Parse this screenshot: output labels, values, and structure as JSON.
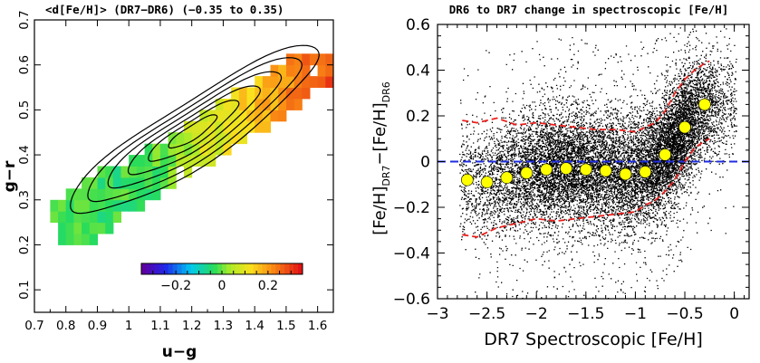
{
  "figure": {
    "left_panel": {
      "title": "<d[Fe/H]> (DR7−DR6) (−0.35 to 0.35)",
      "xlabel": "u−g",
      "ylabel": "g−r",
      "colorbar": {
        "ticks": [
          -0.2,
          0.0,
          0.2
        ],
        "tick_labels": [
          "−0.2",
          "0",
          "0.2"
        ],
        "range": [
          -0.35,
          0.35
        ]
      }
    },
    "right_panel": {
      "title": "DR6 to DR7 change in spectroscopic [Fe/H]",
      "xlabel": "DR7 Spectroscopic [Fe/H]",
      "ylabel_main": "[Fe/H]",
      "ylabel_sub1": "DR7",
      "ylabel_minus": "−[Fe/H]",
      "ylabel_sub2": "DR6"
    }
  },
  "colors": {
    "scatter_points": "#000000",
    "median_markers": "#ffff00",
    "envelope_lines": "#e8201c",
    "zero_line": "#1f2ee0",
    "contours": "#000000"
  },
  "chart_data": [
    {
      "type": "heatmap",
      "title": "<d[Fe/H]> (DR7−DR6) (−0.35 to 0.35)",
      "xlabel": "u−g",
      "ylabel": "g−r",
      "xlim": [
        0.7,
        1.65
      ],
      "ylim": [
        0.05,
        0.7
      ],
      "x_ticks": [
        0.7,
        0.8,
        0.9,
        1.0,
        1.1,
        1.2,
        1.3,
        1.4,
        1.5,
        1.6
      ],
      "x_tick_labels": [
        "0.7",
        "0.8",
        "0.9",
        "1",
        "1.1",
        "1.2",
        "1.3",
        "1.4",
        "1.5",
        "1.6"
      ],
      "y_ticks": [
        0.1,
        0.2,
        0.3,
        0.4,
        0.5,
        0.6,
        0.7
      ],
      "y_tick_labels": [
        "0.1",
        "0.2",
        "0.3",
        "0.4",
        "0.5",
        "0.6",
        "0.7"
      ],
      "color_range": [
        -0.35,
        0.35
      ],
      "cells": "median Δ[Fe/H] on a 0.025 × 0.025 color grid, ~ -0.03 at u−g 0.8 rising to ~ +0.3 at u−g 1.6; covered region spans u−g 0.75–1.62, g−r 0.2–0.62",
      "contours": "6 nested density contours centred near u−g 1.2, g−r 0.45"
    },
    {
      "type": "scatter",
      "title": "DR6 to DR7 change in spectroscopic [Fe/H]",
      "xlabel": "DR7 Spectroscopic [Fe/H]",
      "ylabel": "[Fe/H]DR7−[Fe/H]DR6",
      "xlim": [
        -3.0,
        0.15
      ],
      "ylim": [
        -0.6,
        0.6
      ],
      "x_ticks": [
        -3,
        -2.5,
        -2,
        -1.5,
        -1,
        -0.5,
        0
      ],
      "x_tick_labels": [
        "−3",
        "−2.5",
        "−2",
        "−1.5",
        "−1",
        "−0.5",
        "0"
      ],
      "y_ticks": [
        -0.6,
        -0.4,
        -0.2,
        0,
        0.2,
        0.4,
        0.6
      ],
      "y_tick_labels": [
        "−0.6",
        "−0.4",
        "−0.2",
        "0",
        "0.2",
        "0.4",
        "0.6"
      ],
      "medians": {
        "x": [
          -2.7,
          -2.5,
          -2.3,
          -2.1,
          -1.9,
          -1.7,
          -1.5,
          -1.3,
          -1.1,
          -0.9,
          -0.7,
          -0.5,
          -0.3
        ],
        "y": [
          -0.08,
          -0.09,
          -0.07,
          -0.05,
          -0.035,
          -0.03,
          -0.035,
          -0.04,
          -0.055,
          -0.045,
          0.03,
          0.15,
          0.25
        ]
      },
      "envelope_upper": {
        "x": [
          -2.75,
          -2.6,
          -2.4,
          -2.2,
          -2.0,
          -1.8,
          -1.6,
          -1.4,
          -1.2,
          -1.0,
          -0.9,
          -0.8,
          -0.7,
          -0.6,
          -0.5,
          -0.4,
          -0.3,
          -0.25
        ],
        "y": [
          0.18,
          0.17,
          0.19,
          0.16,
          0.17,
          0.16,
          0.15,
          0.14,
          0.14,
          0.13,
          0.15,
          0.17,
          0.22,
          0.3,
          0.36,
          0.4,
          0.43,
          0.44
        ]
      },
      "envelope_lower": {
        "x": [
          -2.75,
          -2.6,
          -2.4,
          -2.2,
          -2.0,
          -1.8,
          -1.6,
          -1.4,
          -1.2,
          -1.0,
          -0.9,
          -0.8,
          -0.7,
          -0.6,
          -0.5,
          -0.4,
          -0.3,
          -0.25
        ],
        "y": [
          -0.32,
          -0.33,
          -0.29,
          -0.27,
          -0.25,
          -0.26,
          -0.25,
          -0.24,
          -0.23,
          -0.22,
          -0.19,
          -0.17,
          -0.13,
          -0.08,
          0.0,
          0.06,
          0.09,
          0.1
        ]
      },
      "zero_line": 0
    }
  ]
}
